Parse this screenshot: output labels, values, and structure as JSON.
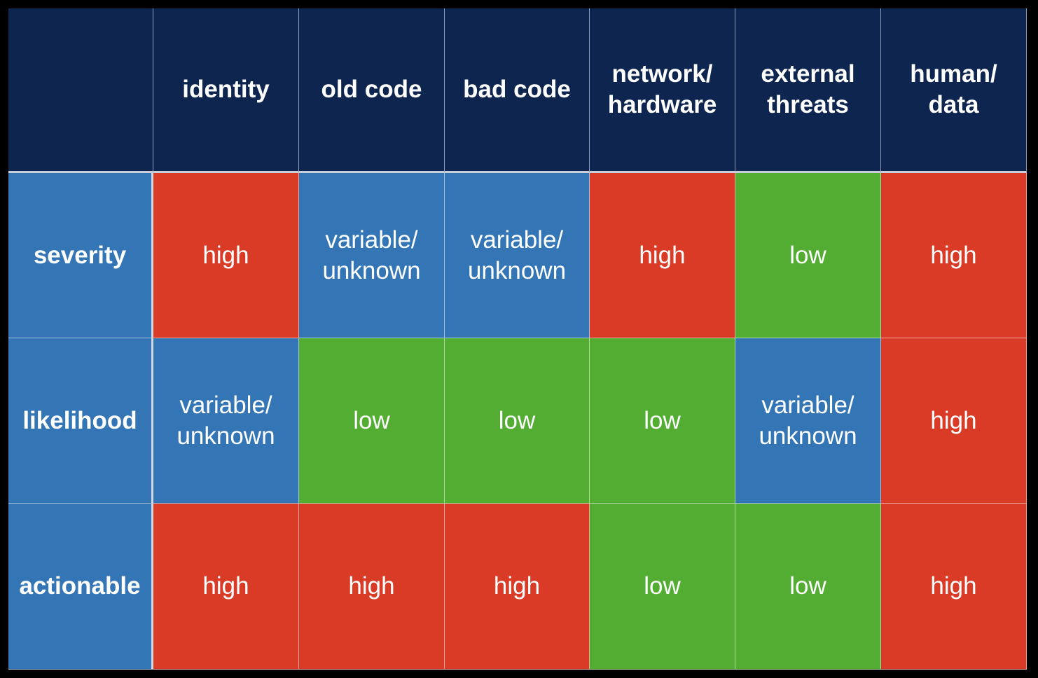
{
  "colors": {
    "header_bg": "#0e264f",
    "row_header_bg": "#3476b5",
    "high": "#d93b26",
    "low": "#53ad33",
    "variable": "#3476b5"
  },
  "columns": [
    {
      "key": "identity",
      "label": "identity"
    },
    {
      "key": "old_code",
      "label": "old code"
    },
    {
      "key": "bad_code",
      "label": "bad code"
    },
    {
      "key": "network_hardware",
      "label": "network/\nhardware"
    },
    {
      "key": "external_threats",
      "label": "external\nthreats"
    },
    {
      "key": "human_data",
      "label": "human/\ndata"
    }
  ],
  "rows": [
    {
      "label": "severity",
      "cells": [
        {
          "text": "high",
          "level": "high"
        },
        {
          "text": "variable/\nunknown",
          "level": "variable"
        },
        {
          "text": "variable/\nunknown",
          "level": "variable"
        },
        {
          "text": "high",
          "level": "high"
        },
        {
          "text": "low",
          "level": "low"
        },
        {
          "text": "high",
          "level": "high"
        }
      ]
    },
    {
      "label": "likelihood",
      "cells": [
        {
          "text": "variable/\nunknown",
          "level": "variable"
        },
        {
          "text": "low",
          "level": "low"
        },
        {
          "text": "low",
          "level": "low"
        },
        {
          "text": "low",
          "level": "low"
        },
        {
          "text": "variable/\nunknown",
          "level": "variable"
        },
        {
          "text": "high",
          "level": "high"
        }
      ]
    },
    {
      "label": "actionable",
      "cells": [
        {
          "text": "high",
          "level": "high"
        },
        {
          "text": "high",
          "level": "high"
        },
        {
          "text": "high",
          "level": "high"
        },
        {
          "text": "low",
          "level": "low"
        },
        {
          "text": "low",
          "level": "low"
        },
        {
          "text": "high",
          "level": "high"
        }
      ]
    }
  ]
}
